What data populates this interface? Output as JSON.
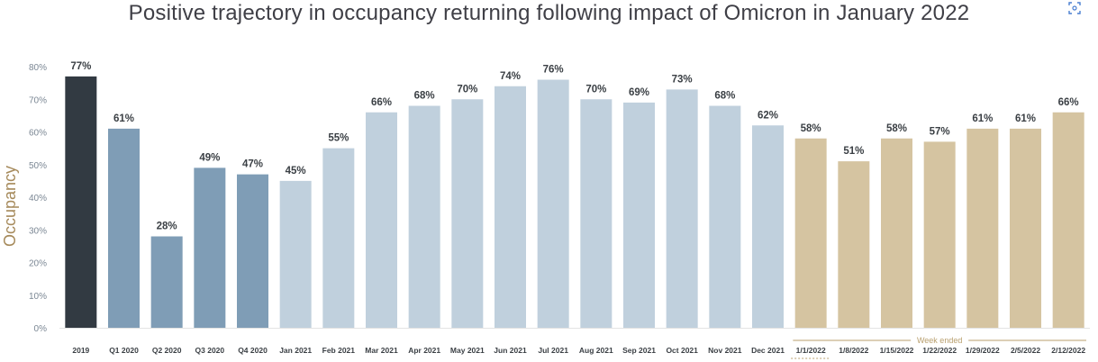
{
  "chart_data": {
    "type": "bar",
    "title": "Positive trajectory in occupancy returning following impact of Omicron in January 2022",
    "ylabel": "Occupancy",
    "xlabel": "",
    "ylim": [
      0,
      80
    ],
    "yticks": [
      "0%",
      "10%",
      "20%",
      "30%",
      "40%",
      "50%",
      "60%",
      "70%",
      "80%"
    ],
    "categories": [
      "2019",
      "Q1 2020",
      "Q2 2020",
      "Q3 2020",
      "Q4 2020",
      "Jan 2021",
      "Feb 2021",
      "Mar 2021",
      "Apr 2021",
      "May 2021",
      "Jun 2021",
      "Jul 2021",
      "Aug 2021",
      "Sep 2021",
      "Oct 2021",
      "Nov 2021",
      "Dec 2021",
      "1/1/2022",
      "1/8/2022",
      "1/15/2022",
      "1/22/2022",
      "1/29/2022",
      "2/5/2022",
      "2/12/2022"
    ],
    "values": [
      77,
      61,
      28,
      49,
      47,
      45,
      55,
      66,
      68,
      70,
      74,
      76,
      70,
      69,
      73,
      68,
      62,
      58,
      51,
      58,
      57,
      61,
      61,
      66
    ],
    "value_labels": [
      "77%",
      "61%",
      "28%",
      "49%",
      "47%",
      "45%",
      "55%",
      "66%",
      "68%",
      "70%",
      "74%",
      "76%",
      "70%",
      "69%",
      "73%",
      "68%",
      "62%",
      "58%",
      "51%",
      "58%",
      "57%",
      "61%",
      "61%",
      "66%"
    ],
    "groups": [
      "2019",
      "2020",
      "2020",
      "2020",
      "2020",
      "2021",
      "2021",
      "2021",
      "2021",
      "2021",
      "2021",
      "2021",
      "2021",
      "2021",
      "2021",
      "2021",
      "2021",
      "2022",
      "2022",
      "2022",
      "2022",
      "2022",
      "2022",
      "2022"
    ],
    "colors": {
      "2019": "#323a42",
      "2020": "#7f9db6",
      "2021": "#c0d0dd",
      "2022": "#d5c4a1"
    },
    "annotation": "Week ended"
  },
  "colors": {
    "title": "#3f3f46",
    "axis_text": "#7b8794",
    "ylabel": "#a68a5b",
    "value_label": "#3a3f44",
    "annotation": "#b89f6e",
    "gridline": "#e3e3e3"
  },
  "icons": {
    "corner": "expand-icon"
  }
}
